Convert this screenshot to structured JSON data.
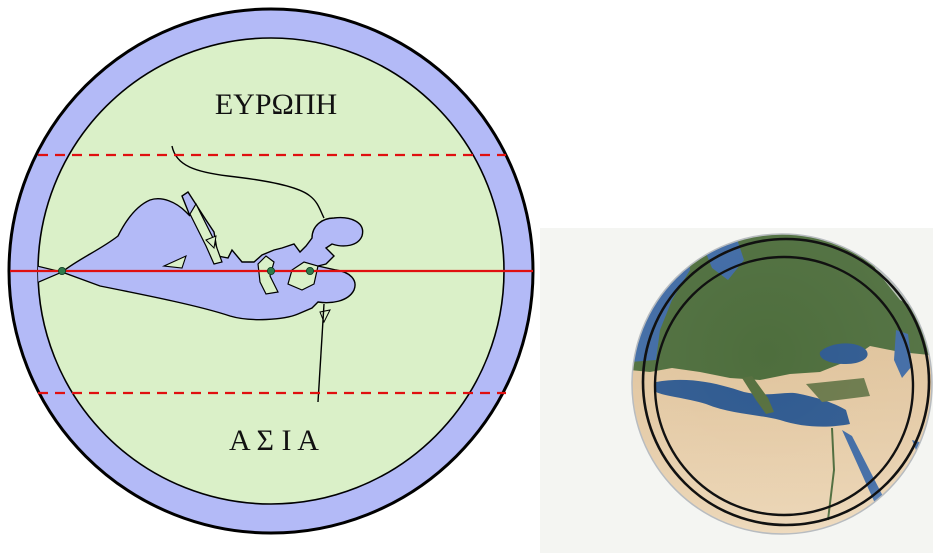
{
  "left_map": {
    "north_label": "ΕΥΡΩΠΗ",
    "south_label": "Α Σ Ι Α",
    "colors": {
      "ocean": "#b3baf7",
      "land": "#daf0c8",
      "outline": "#000000",
      "equator_line": "#e01010",
      "tropic_lines": "#e01010",
      "city_points": "#2e7a4a"
    }
  },
  "right_globe": {
    "style": "satellite-view",
    "colors": {
      "sea": "#3f6aa4",
      "forest": "#4e6e3d",
      "desert": "#e2c49e",
      "ring": "#111111"
    }
  }
}
